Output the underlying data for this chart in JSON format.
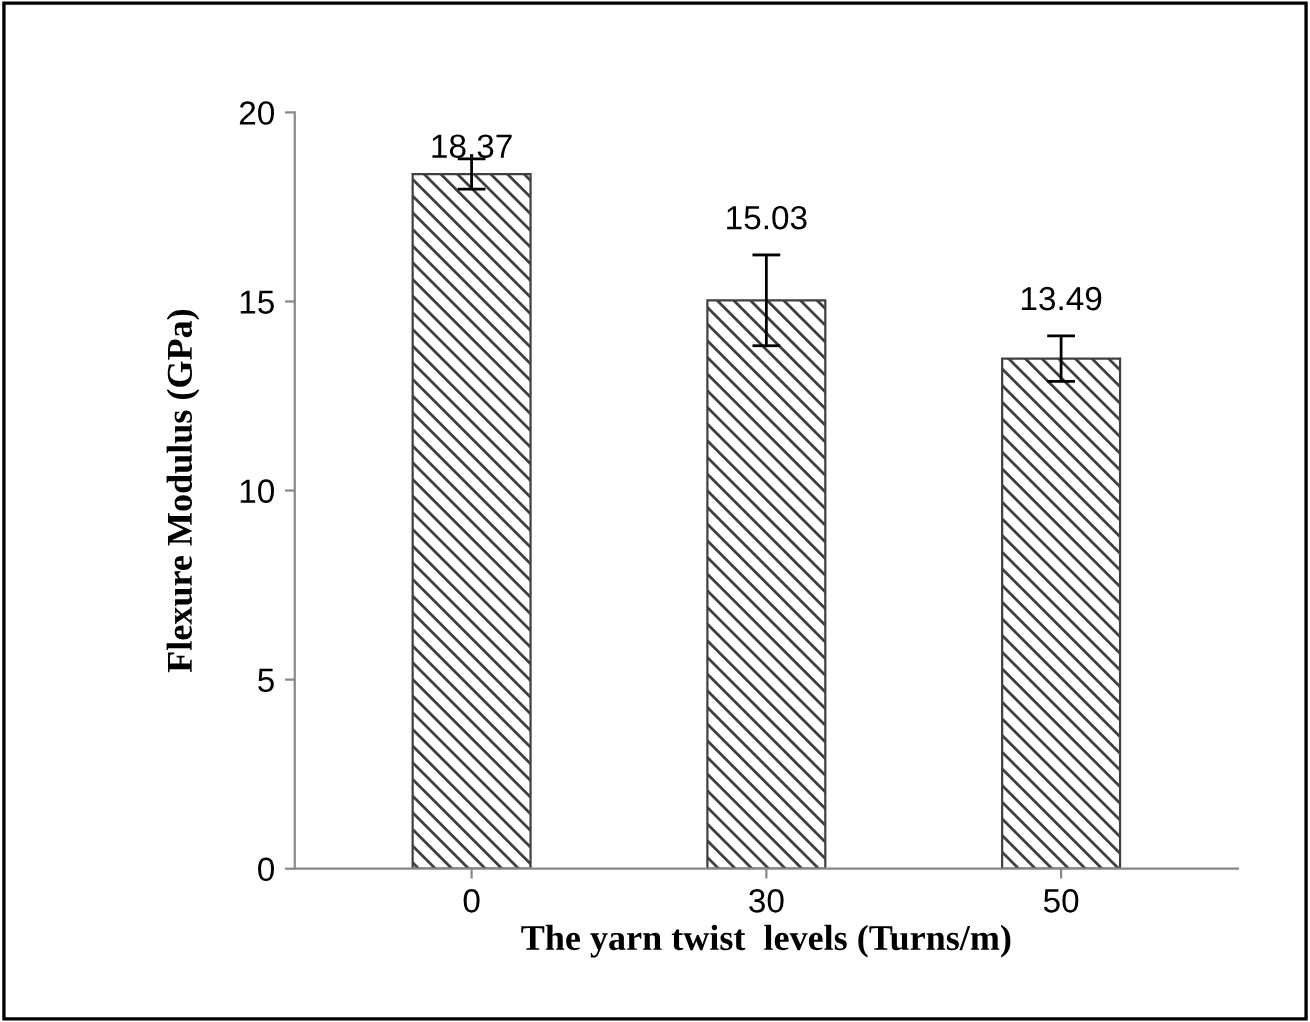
{
  "chart_data": {
    "type": "bar",
    "xlabel": "The yarn twist  levels (Turns/m)",
    "ylabel": "Flexure Modulus (GPa)",
    "categories": [
      "0",
      "30",
      "50"
    ],
    "values": [
      18.37,
      15.03,
      13.49
    ],
    "errors": [
      0.4,
      1.2,
      0.6
    ],
    "color": "#404040",
    "data_labels": true,
    "ylim": [
      0,
      20
    ],
    "yticks": [
      0,
      5,
      10,
      15,
      20
    ],
    "grid": false
  }
}
